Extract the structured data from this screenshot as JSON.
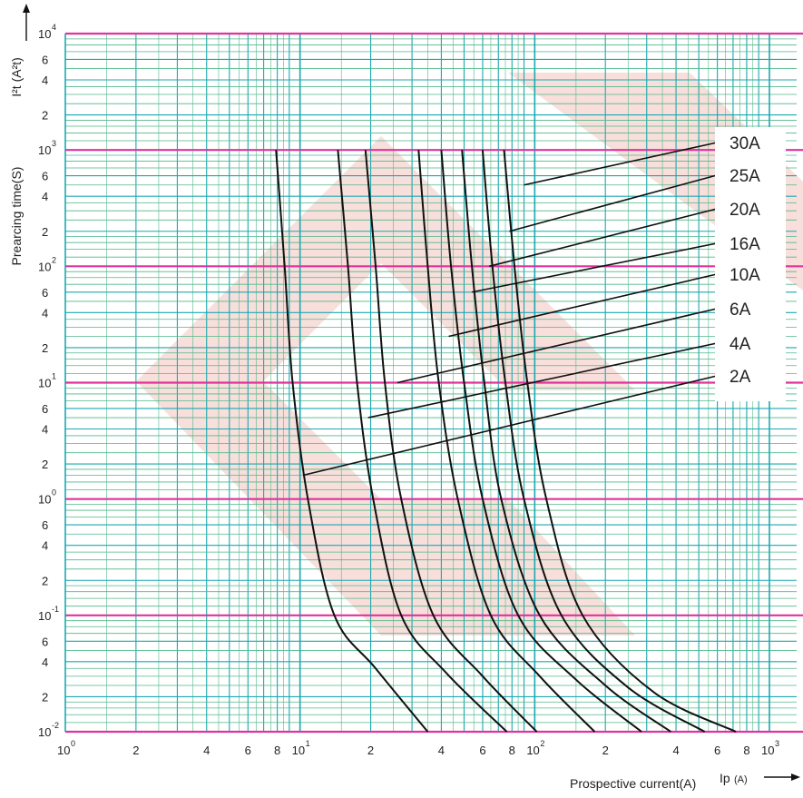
{
  "chart_data": {
    "type": "line",
    "title": "",
    "xlabel": "Prospective current(A)",
    "xlabel_symbol": "Ip",
    "xlabel_unit": "(A)",
    "ylabel": "Prearcing time(S)",
    "ylabel_secondary": "I²t (A²t)",
    "x_scale": "log",
    "y_scale": "log",
    "xlim": [
      1,
      1000
    ],
    "ylim": [
      0.01,
      10000
    ],
    "grid": true,
    "x_major_ticks": [
      {
        "value": 1,
        "base": "10",
        "exp": "0"
      },
      {
        "value": 10,
        "base": "10",
        "exp": "1"
      },
      {
        "value": 100,
        "base": "10",
        "exp": "2"
      },
      {
        "value": 1000,
        "base": "10",
        "exp": "3"
      }
    ],
    "x_minor_ticks": [
      {
        "value": 2,
        "label": "2"
      },
      {
        "value": 4,
        "label": "4"
      },
      {
        "value": 6,
        "label": "6"
      },
      {
        "value": 8,
        "label": "8"
      },
      {
        "value": 20,
        "label": "2"
      },
      {
        "value": 40,
        "label": "4"
      },
      {
        "value": 60,
        "label": "6"
      },
      {
        "value": 80,
        "label": "8"
      },
      {
        "value": 200,
        "label": "2"
      },
      {
        "value": 400,
        "label": "4"
      },
      {
        "value": 600,
        "label": "6"
      },
      {
        "value": 800,
        "label": "8"
      }
    ],
    "y_major_ticks": [
      {
        "value": 0.01,
        "base": "10",
        "exp": "-2"
      },
      {
        "value": 0.1,
        "base": "10",
        "exp": "-1"
      },
      {
        "value": 1,
        "base": "10",
        "exp": "0"
      },
      {
        "value": 10,
        "base": "10",
        "exp": "1"
      },
      {
        "value": 100,
        "base": "10",
        "exp": "2"
      },
      {
        "value": 1000,
        "base": "10",
        "exp": "3"
      },
      {
        "value": 10000,
        "base": "10",
        "exp": "4"
      }
    ],
    "y_minor_ticks": [
      {
        "value": 0.02,
        "label": "2"
      },
      {
        "value": 0.04,
        "label": "4"
      },
      {
        "value": 0.06,
        "label": "6"
      },
      {
        "value": 0.2,
        "label": "2"
      },
      {
        "value": 0.4,
        "label": "4"
      },
      {
        "value": 0.6,
        "label": "6"
      },
      {
        "value": 2,
        "label": "2"
      },
      {
        "value": 4,
        "label": "4"
      },
      {
        "value": 6,
        "label": "6"
      },
      {
        "value": 20,
        "label": "2"
      },
      {
        "value": 40,
        "label": "4"
      },
      {
        "value": 60,
        "label": "6"
      },
      {
        "value": 200,
        "label": "2"
      },
      {
        "value": 400,
        "label": "4"
      },
      {
        "value": 600,
        "label": "6"
      },
      {
        "value": 2000,
        "label": "2"
      },
      {
        "value": 4000,
        "label": "4"
      },
      {
        "value": 6000,
        "label": "6"
      }
    ],
    "series": [
      {
        "name": "2A",
        "label_anchor": [
          10.3,
          1.6
        ],
        "points": [
          [
            7.9,
            1000
          ],
          [
            8.6,
            100
          ],
          [
            9.3,
            10
          ],
          [
            10.8,
            1
          ],
          [
            14,
            0.1
          ],
          [
            21,
            0.035
          ],
          [
            35,
            0.01
          ]
        ]
      },
      {
        "name": "4A",
        "label_anchor": [
          19.5,
          5
        ],
        "points": [
          [
            14.5,
            1000
          ],
          [
            16,
            100
          ],
          [
            17.5,
            10
          ],
          [
            20.5,
            1
          ],
          [
            27,
            0.1
          ],
          [
            42,
            0.032
          ],
          [
            76,
            0.01
          ]
        ]
      },
      {
        "name": "6A",
        "label_anchor": [
          26,
          10
        ],
        "points": [
          [
            19,
            1000
          ],
          [
            21,
            100
          ],
          [
            23,
            10
          ],
          [
            27,
            1
          ],
          [
            37,
            0.1
          ],
          [
            60,
            0.03
          ],
          [
            102,
            0.01
          ]
        ]
      },
      {
        "name": "10A",
        "label_anchor": [
          43,
          25
        ],
        "points": [
          [
            32,
            1000
          ],
          [
            35,
            100
          ],
          [
            39,
            10
          ],
          [
            47,
            1
          ],
          [
            65,
            0.1
          ],
          [
            105,
            0.03
          ],
          [
            180,
            0.01
          ]
        ]
      },
      {
        "name": "16A",
        "label_anchor": [
          54,
          60
        ],
        "points": [
          [
            40,
            1000
          ],
          [
            44,
            100
          ],
          [
            50,
            10
          ],
          [
            60,
            1
          ],
          [
            85,
            0.1
          ],
          [
            150,
            0.028
          ],
          [
            285,
            0.01
          ]
        ]
      },
      {
        "name": "20A",
        "label_anchor": [
          64,
          100
        ],
        "points": [
          [
            49,
            1000
          ],
          [
            54,
            100
          ],
          [
            61,
            10
          ],
          [
            72,
            1
          ],
          [
            105,
            0.1
          ],
          [
            200,
            0.025
          ],
          [
            380,
            0.01
          ]
        ]
      },
      {
        "name": "25A",
        "label_anchor": [
          78,
          200
        ],
        "points": [
          [
            60,
            1000
          ],
          [
            66,
            100
          ],
          [
            75,
            10
          ],
          [
            90,
            1
          ],
          [
            130,
            0.1
          ],
          [
            250,
            0.024
          ],
          [
            530,
            0.01
          ]
        ]
      },
      {
        "name": "30A",
        "label_anchor": [
          90,
          500
        ],
        "points": [
          [
            74,
            1000
          ],
          [
            82,
            100
          ],
          [
            93,
            10
          ],
          [
            112,
            1
          ],
          [
            160,
            0.1
          ],
          [
            320,
            0.022
          ],
          [
            720,
            0.01
          ]
        ]
      }
    ],
    "legend_order": [
      "30A",
      "25A",
      "20A",
      "16A",
      "10A",
      "6A",
      "4A",
      "2A"
    ],
    "colors": {
      "major_grid": "#e0339b",
      "minor_grid": "#1aa8b0",
      "secondary_grid": "#4fb88a",
      "curve": "#111111",
      "watermark": "#f2c4c0"
    }
  }
}
